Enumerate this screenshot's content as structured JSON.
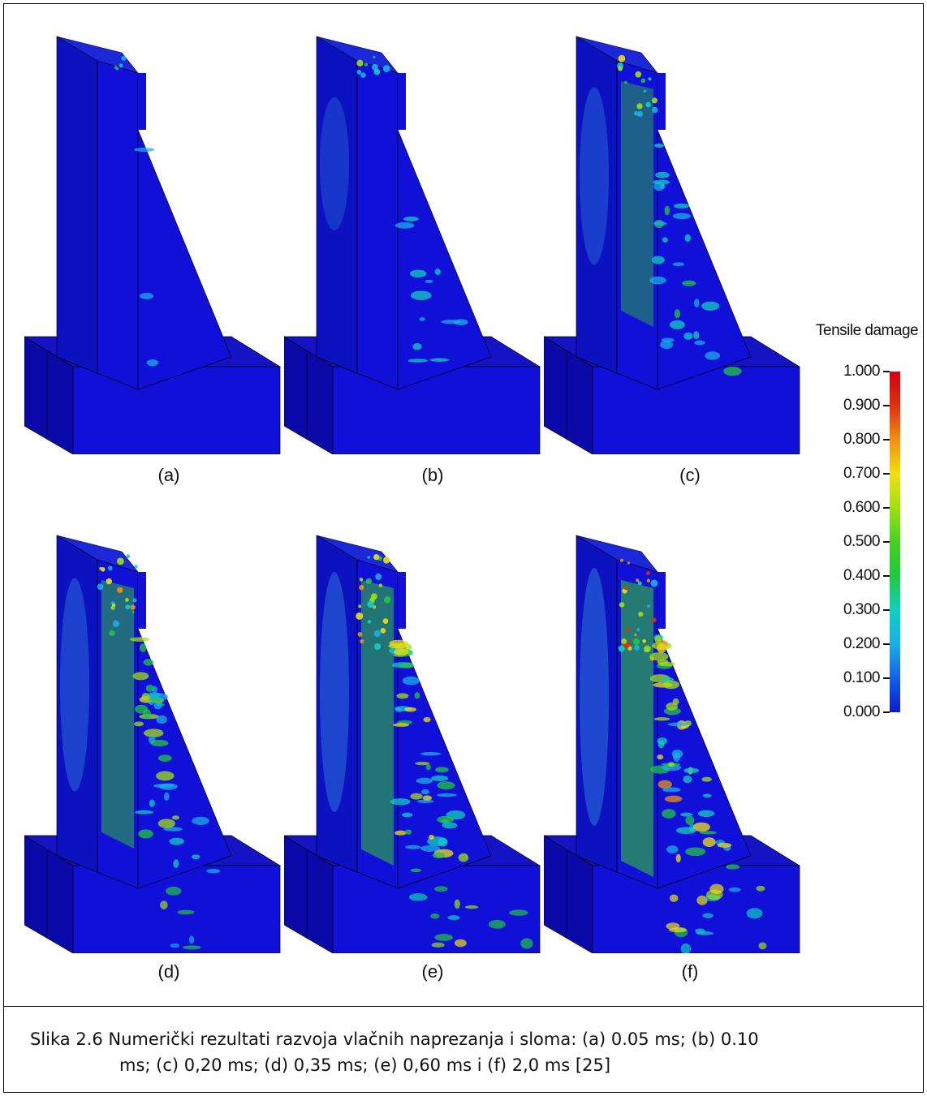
{
  "figure": {
    "panels": [
      {
        "label": "(a)",
        "damage": 0.05
      },
      {
        "label": "(b)",
        "damage": 0.2
      },
      {
        "label": "(c)",
        "damage": 0.45
      },
      {
        "label": "(d)",
        "damage": 0.65
      },
      {
        "label": "(e)",
        "damage": 0.8
      },
      {
        "label": "(f)",
        "damage": 0.9
      }
    ],
    "legend": {
      "title": "Tensile damage",
      "ticks": [
        "1.000",
        "0.900",
        "0.800",
        "0.700",
        "0.600",
        "0.500",
        "0.400",
        "0.300",
        "0.200",
        "0.100",
        "0.000"
      ],
      "colors": [
        "#0a1ad0",
        "#1460e8",
        "#18b0e8",
        "#10d0c0",
        "#20c840",
        "#48d020",
        "#a0e010",
        "#f0e010",
        "#f09010",
        "#e03010",
        "#d00010"
      ]
    }
  },
  "caption": {
    "line1": "Slika 2.6 Numerički rezultati razvoja vlačnih naprezanja i sloma: (a) 0.05 ms; (b) 0.10",
    "line2": "ms; (c) 0,20 ms; (d) 0,35 ms; (e) 0,60 ms i (f) 2,0 ms [25]"
  }
}
